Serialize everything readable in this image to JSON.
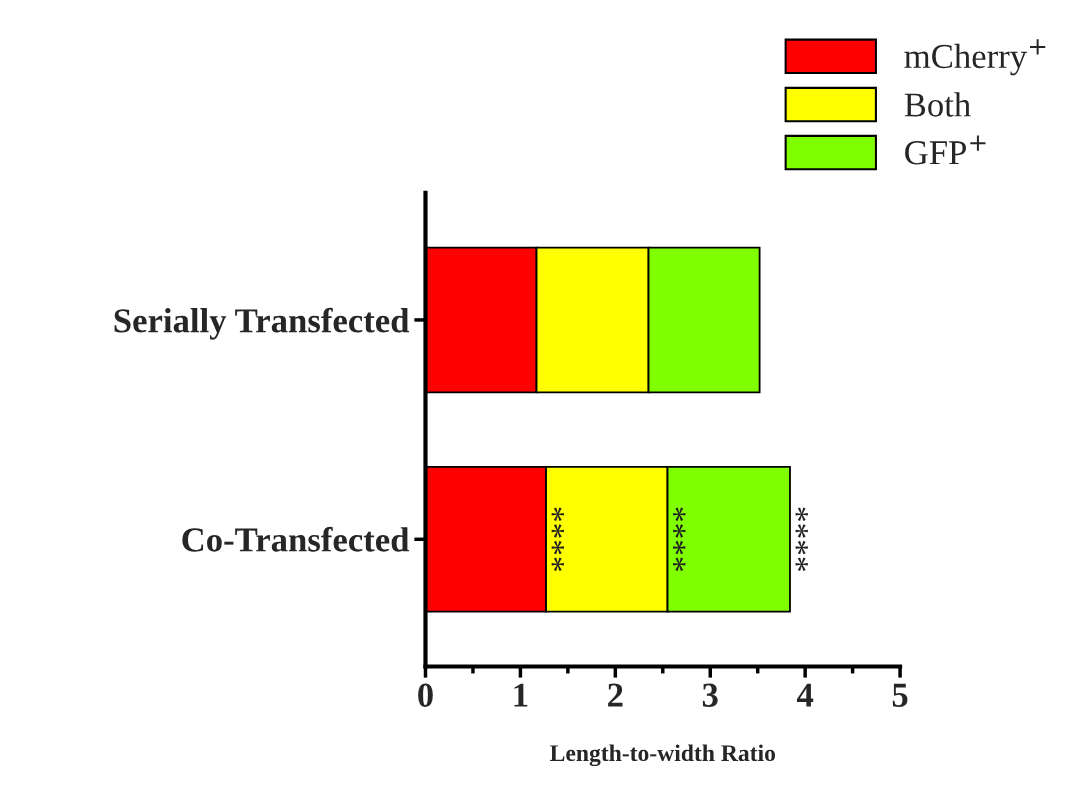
{
  "chart_data": {
    "type": "bar",
    "orientation": "horizontal",
    "stacked": true,
    "categories": [
      "Serially Transfected",
      "Co-Transfected"
    ],
    "series": [
      {
        "name": "mCherry$^{+}$",
        "color": "#ff0000",
        "values": [
          1.17,
          1.27
        ]
      },
      {
        "name": "Both",
        "color": "#ffff00",
        "values": [
          1.18,
          1.28
        ]
      },
      {
        "name": "GFP$^{+}$",
        "color": "#80ff00",
        "values": [
          1.17,
          1.29
        ]
      }
    ],
    "xlabel": "Length-to-width Ratio",
    "xlim": [
      0,
      5
    ],
    "xticks": [
      0,
      {
        "value": 0.5,
        "label": null
      },
      1,
      {
        "value": 1.5,
        "label": null
      },
      2,
      {
        "value": 2.5,
        "label": null
      },
      3,
      {
        "value": 3.5,
        "label": null
      },
      4,
      {
        "value": 4.5,
        "label": null
      },
      5
    ],
    "legend": "top right",
    "grid": false,
    "annotations": [
      "****",
      "****",
      "****"
    ]
  }
}
